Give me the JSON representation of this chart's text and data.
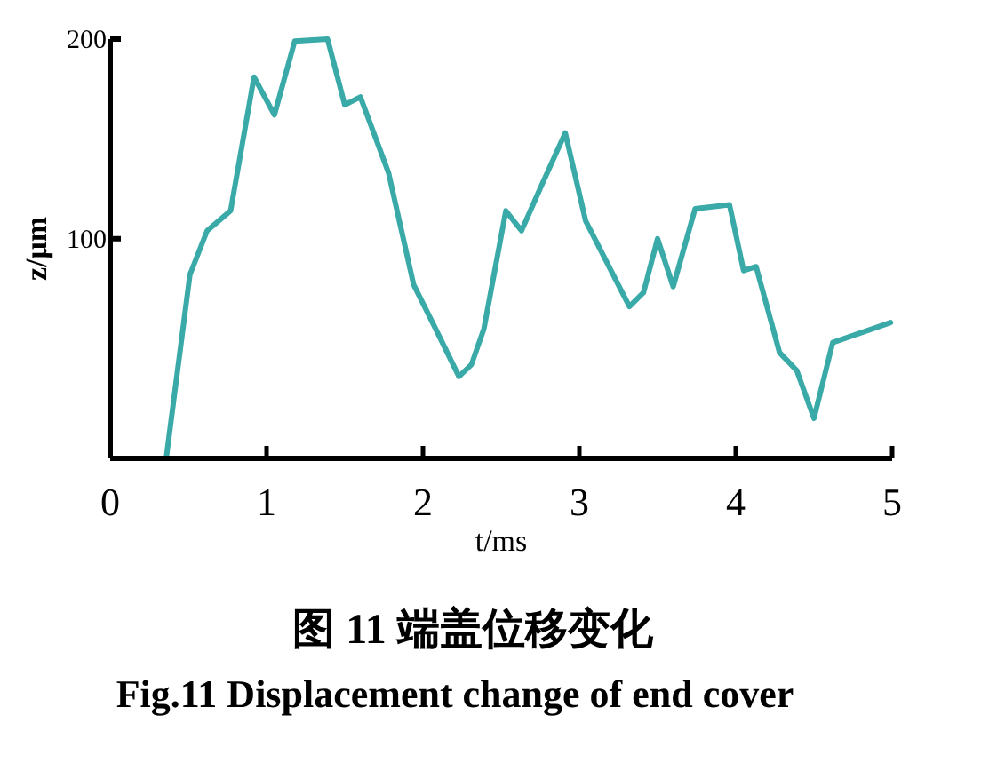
{
  "chart_data": {
    "type": "line",
    "title": "图 11  端盖位移变化",
    "subtitle": "Fig.11 Displacement change of end cover",
    "xlabel": "t/ms",
    "ylabel": "z/μm",
    "x": [
      0.36,
      0.51,
      0.62,
      0.77,
      0.92,
      1.05,
      1.18,
      1.39,
      1.5,
      1.6,
      1.78,
      1.94,
      2.08,
      2.23,
      2.31,
      2.39,
      2.53,
      2.63,
      2.76,
      2.91,
      3.04,
      3.32,
      3.41,
      3.5,
      3.6,
      3.74,
      3.96,
      4.05,
      4.13,
      4.28,
      4.39,
      4.5,
      4.62,
      4.99
    ],
    "series": [
      {
        "color": "#3aaaa8",
        "values": [
          -9,
          82,
          104,
          114,
          181,
          162,
          199,
          200,
          167,
          171,
          133,
          77,
          55,
          31,
          37,
          55,
          114,
          104,
          127,
          153,
          109,
          66,
          73,
          100,
          76,
          115,
          117,
          84,
          86,
          43,
          34,
          10,
          48,
          58
        ]
      }
    ],
    "xlim": [
      0,
      5
    ],
    "ylim": [
      -10,
      200
    ],
    "xticks": [
      0,
      1,
      2,
      3,
      4,
      5
    ],
    "yticks": [
      100,
      200
    ]
  }
}
